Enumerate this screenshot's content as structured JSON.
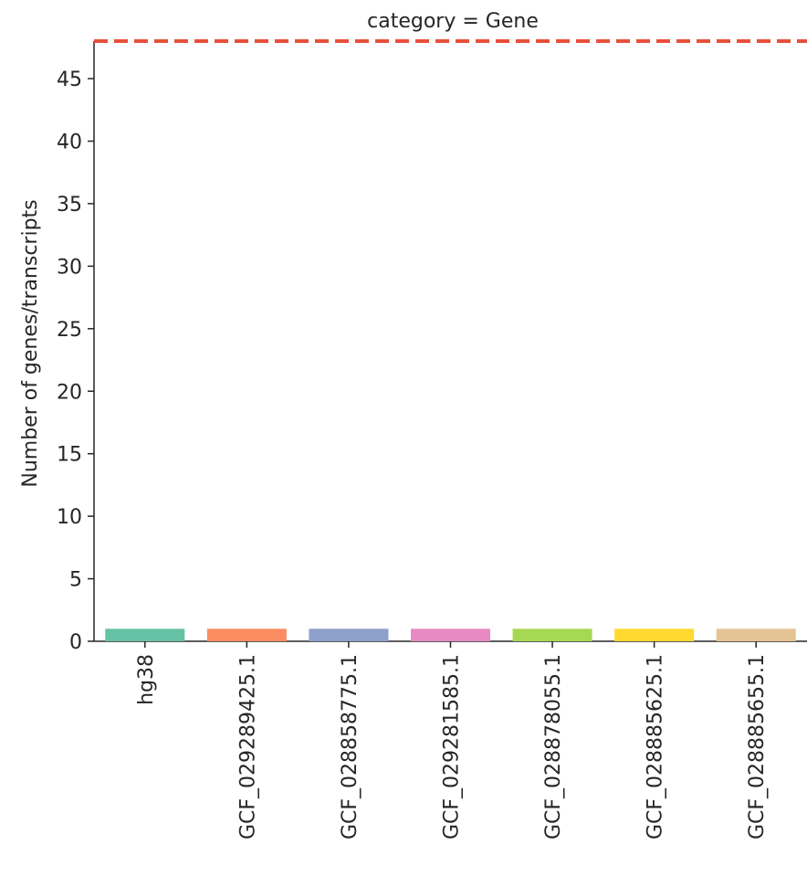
{
  "chart_data": {
    "type": "bar",
    "title": "category = Gene",
    "ylabel": "Number of genes/transcripts",
    "xlabel": "",
    "categories": [
      "hg38",
      "GCF_029289425.1",
      "GCF_028858775.1",
      "GCF_029281585.1",
      "GCF_028878055.1",
      "GCF_028885625.1",
      "GCF_028885655.1"
    ],
    "values": [
      1,
      1,
      1,
      1,
      1,
      1,
      1
    ],
    "colors": [
      "#66c2a5",
      "#fc8d62",
      "#8da0cb",
      "#e78ac3",
      "#a6d854",
      "#ffd92f",
      "#e5c494"
    ],
    "yticks": [
      0,
      5,
      10,
      15,
      20,
      25,
      30,
      35,
      40,
      45
    ],
    "ylim": [
      0,
      48
    ],
    "reference_line": {
      "value": 48,
      "color": "#e8503a",
      "style": "dashed"
    },
    "grid": false,
    "legend": "none"
  }
}
